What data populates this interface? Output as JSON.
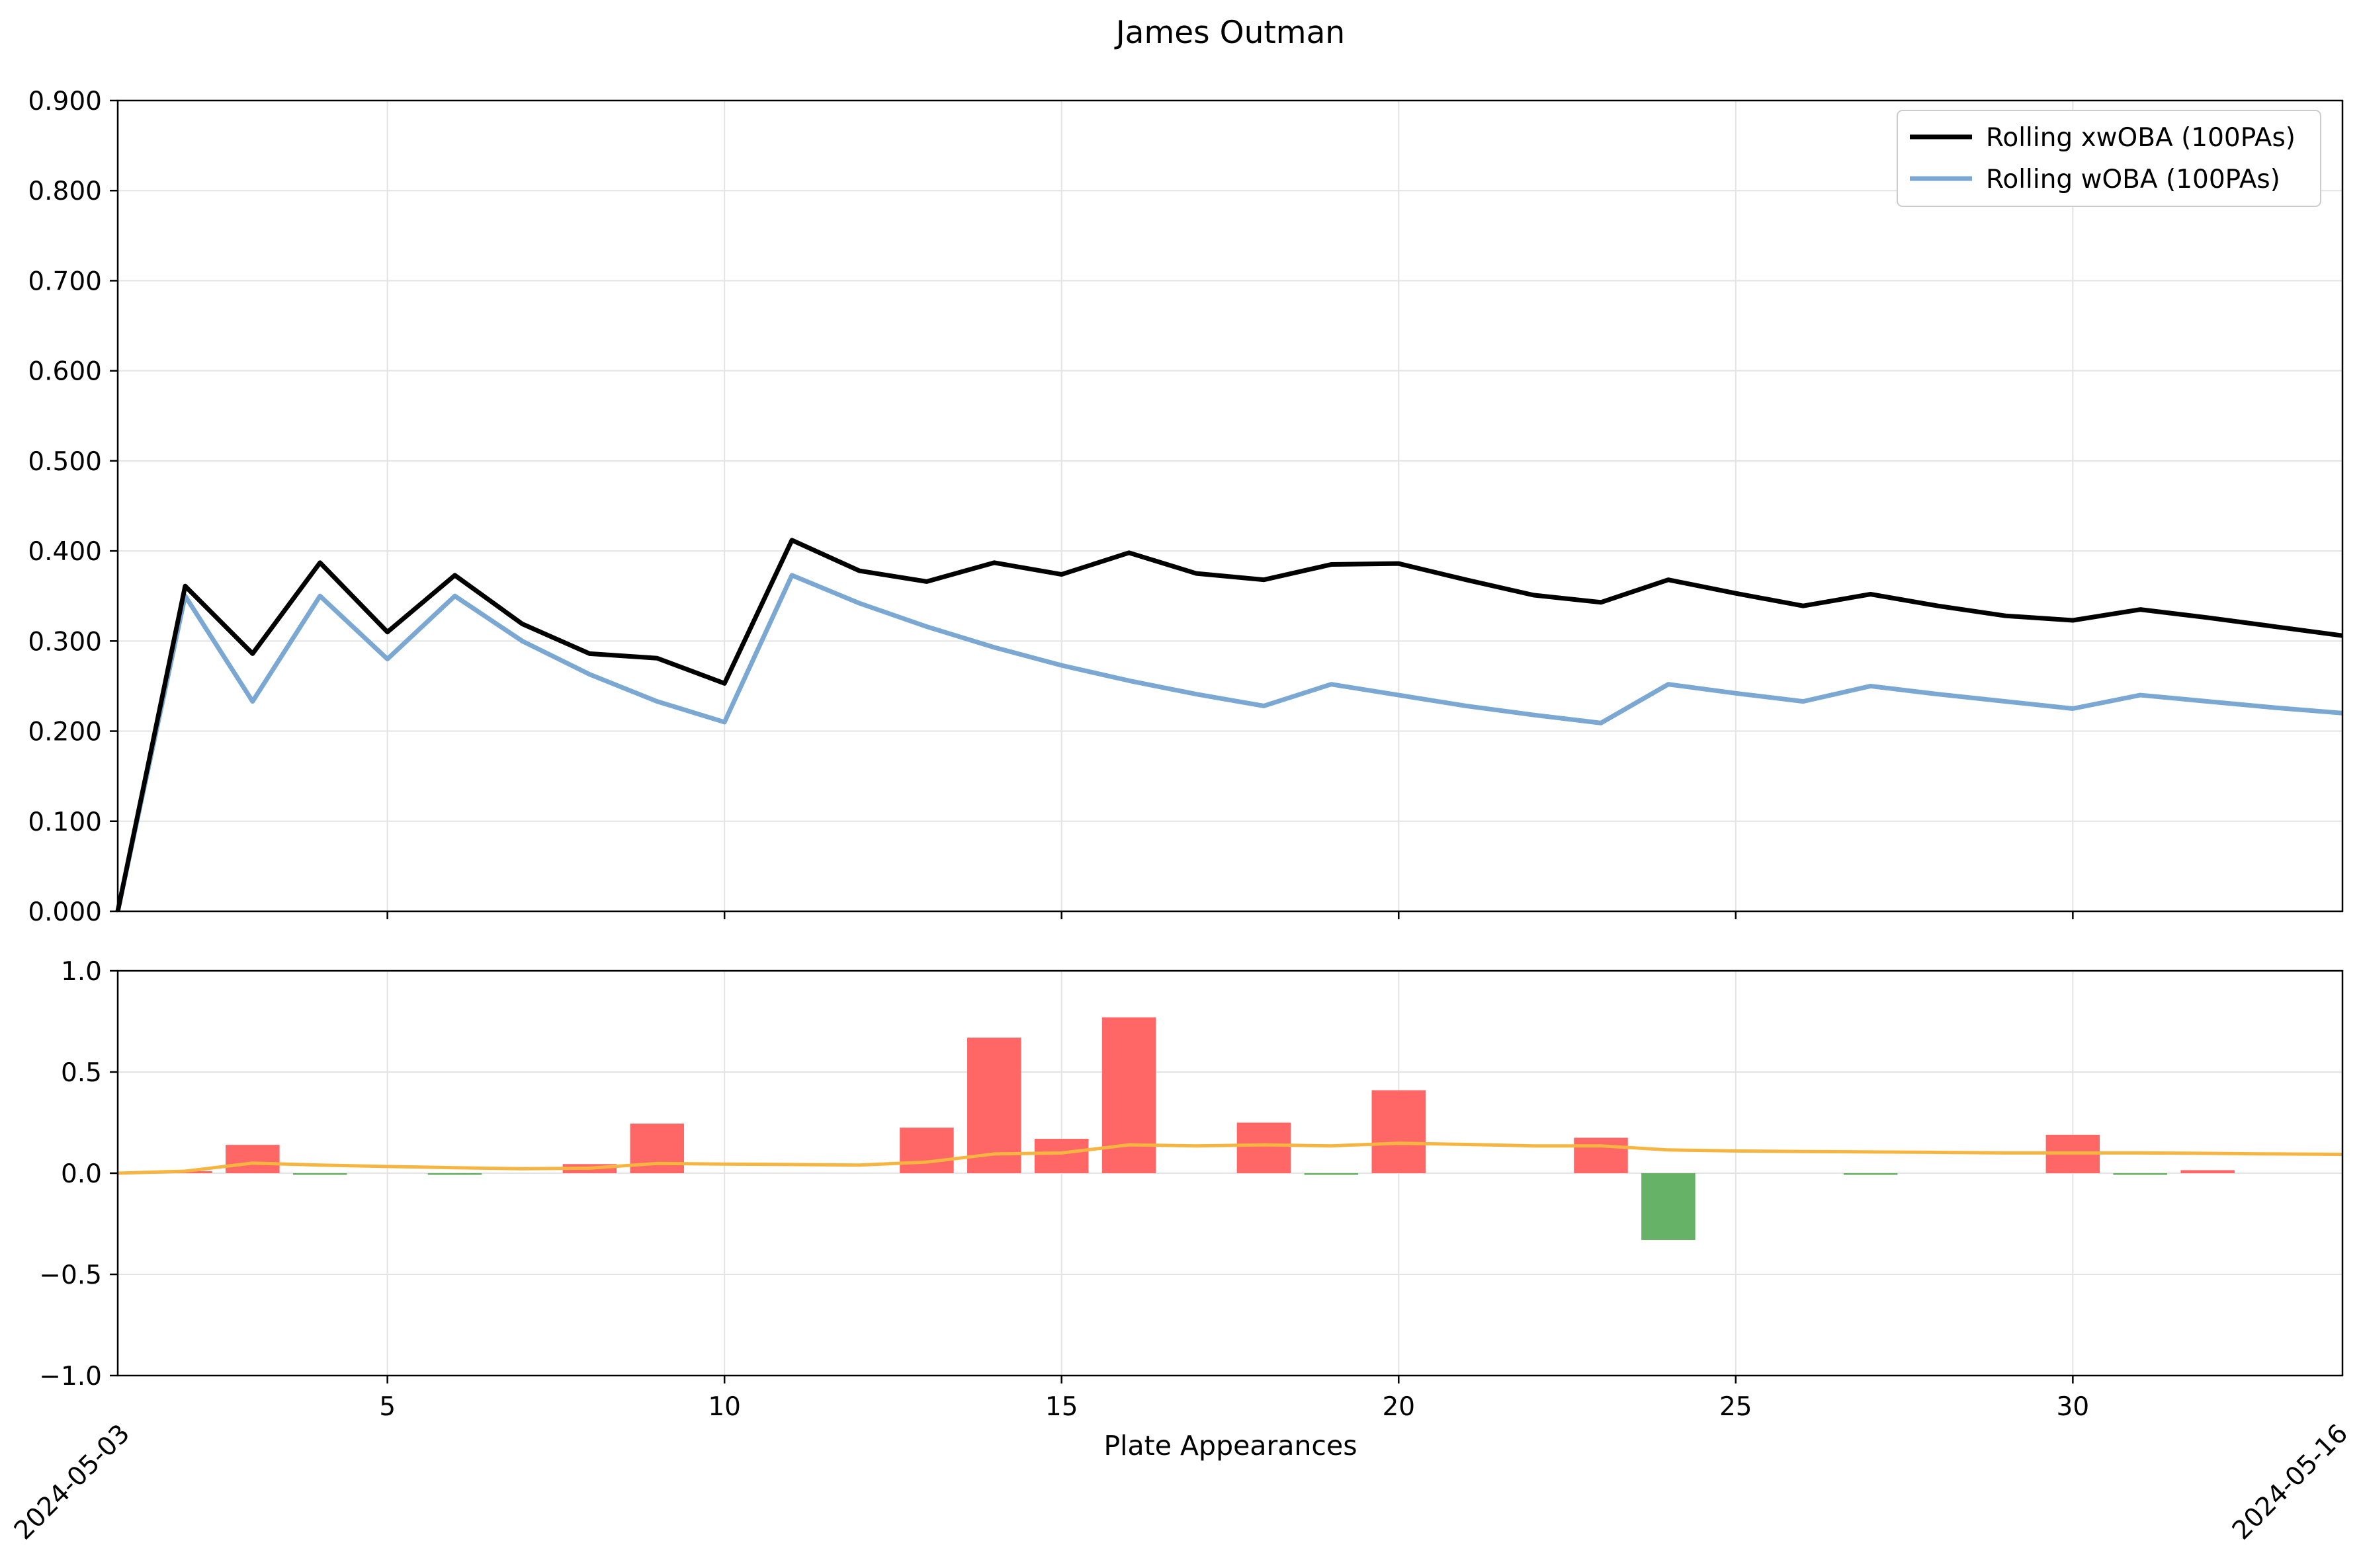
{
  "chart_data": {
    "title": "James Outman",
    "xlabel": "Plate Appearances",
    "top": {
      "type": "line",
      "ylim": [
        0,
        0.9
      ],
      "ytick_labels": [
        "0.000",
        "0.100",
        "0.200",
        "0.300",
        "0.400",
        "0.500",
        "0.600",
        "0.700",
        "0.800",
        "0.900"
      ],
      "grid": true,
      "legend_position": "top-right",
      "series": [
        {
          "name": "Rolling xwOBA (100PAs)",
          "color": "#000000",
          "x": [
            1,
            2,
            3,
            4,
            5,
            6,
            7,
            8,
            9,
            10,
            11,
            12,
            13,
            14,
            15,
            16,
            17,
            18,
            19,
            20,
            21,
            22,
            23,
            24,
            25,
            26,
            27,
            28,
            29,
            30,
            31,
            32,
            33,
            34
          ],
          "values": [
            0.0,
            0.361,
            0.286,
            0.387,
            0.31,
            0.373,
            0.319,
            0.286,
            0.281,
            0.253,
            0.412,
            0.378,
            0.366,
            0.387,
            0.374,
            0.398,
            0.375,
            0.368,
            0.385,
            0.386,
            0.368,
            0.351,
            0.343,
            0.368,
            0.353,
            0.339,
            0.352,
            0.339,
            0.328,
            0.323,
            0.335,
            0.326,
            0.316,
            0.306
          ]
        },
        {
          "name": "Rolling wOBA (100PAs)",
          "color": "#7aa8d2",
          "x": [
            1,
            2,
            3,
            4,
            5,
            6,
            7,
            8,
            9,
            10,
            11,
            12,
            13,
            14,
            15,
            16,
            17,
            18,
            19,
            20,
            21,
            22,
            23,
            24,
            25,
            26,
            27,
            28,
            29,
            30,
            31,
            32,
            33,
            34
          ],
          "values": [
            0.0,
            0.35,
            0.233,
            0.35,
            0.28,
            0.35,
            0.3,
            0.263,
            0.233,
            0.21,
            0.373,
            0.342,
            0.316,
            0.293,
            0.273,
            0.256,
            0.241,
            0.228,
            0.252,
            0.24,
            0.228,
            0.218,
            0.209,
            0.252,
            0.242,
            0.233,
            0.25,
            0.241,
            0.233,
            0.225,
            0.24,
            0.233,
            0.226,
            0.22
          ]
        }
      ]
    },
    "bottom": {
      "type": "bar",
      "ylim": [
        -1.0,
        1.0
      ],
      "ytick_labels": [
        "−1.0",
        "−0.5",
        "0.0",
        "0.5",
        "1.0"
      ],
      "grid": true,
      "positive_color": "#ff6666",
      "negative_color": "#66b266",
      "line_color": "#f5b540",
      "bars": {
        "x": [
          2,
          3,
          4,
          6,
          8,
          9,
          13,
          14,
          15,
          16,
          18,
          19,
          20,
          23,
          24,
          27,
          30,
          31,
          32
        ],
        "values": [
          0.01,
          0.14,
          -0.005,
          -0.005,
          0.045,
          0.245,
          0.225,
          0.67,
          0.17,
          0.77,
          0.25,
          -0.005,
          0.41,
          0.175,
          -0.33,
          -0.005,
          0.19,
          -0.005,
          0.015
        ]
      },
      "rolling_line": {
        "x": [
          1,
          2,
          3,
          4,
          5,
          6,
          7,
          8,
          9,
          10,
          11,
          12,
          13,
          14,
          15,
          16,
          17,
          18,
          19,
          20,
          21,
          22,
          23,
          24,
          25,
          26,
          27,
          28,
          29,
          30,
          31,
          32,
          33,
          34
        ],
        "values": [
          0.0,
          0.01,
          0.05,
          0.04,
          0.033,
          0.027,
          0.022,
          0.025,
          0.048,
          0.045,
          0.043,
          0.04,
          0.055,
          0.095,
          0.1,
          0.14,
          0.135,
          0.14,
          0.135,
          0.148,
          0.142,
          0.135,
          0.135,
          0.115,
          0.11,
          0.107,
          0.105,
          0.103,
          0.1,
          0.1,
          0.1,
          0.098,
          0.095,
          0.093
        ]
      }
    },
    "xlim": [
      1,
      34
    ],
    "xtick_labels": [
      "5",
      "10",
      "15",
      "20",
      "25",
      "30"
    ],
    "date_labels": [
      "2024-05-03",
      "2024-05-16"
    ]
  }
}
